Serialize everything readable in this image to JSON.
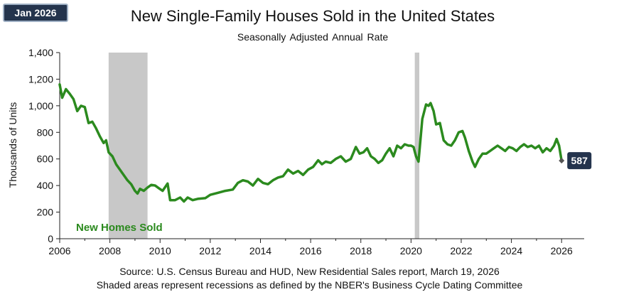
{
  "badge": "Jan 2026",
  "chart_data": {
    "type": "line",
    "title": "New Single-Family Houses Sold in the United States",
    "subtitle": "Seasonally Adjusted  Annual Rate",
    "xlabel": "",
    "ylabel": "Thousands of Units",
    "xlim": [
      2006,
      2026.9
    ],
    "ylim": [
      0,
      1400
    ],
    "x_ticks": [
      "2006",
      "2008",
      "2010",
      "2012",
      "2014",
      "2016",
      "2018",
      "2020",
      "2022",
      "2024",
      "2026"
    ],
    "y_ticks": [
      "0",
      "200",
      "400",
      "600",
      "800",
      "1,000",
      "1,200",
      "1,400"
    ],
    "grid": false,
    "series": [
      {
        "name": "New Homes Sold",
        "color": "#2b8a1e",
        "points": [
          [
            2006.0,
            1160
          ],
          [
            2006.1,
            1060
          ],
          [
            2006.25,
            1125
          ],
          [
            2006.4,
            1090
          ],
          [
            2006.55,
            1050
          ],
          [
            2006.7,
            960
          ],
          [
            2006.85,
            1000
          ],
          [
            2007.0,
            990
          ],
          [
            2007.15,
            870
          ],
          [
            2007.3,
            880
          ],
          [
            2007.45,
            830
          ],
          [
            2007.6,
            770
          ],
          [
            2007.75,
            720
          ],
          [
            2007.85,
            740
          ],
          [
            2007.95,
            650
          ],
          [
            2008.1,
            620
          ],
          [
            2008.25,
            560
          ],
          [
            2008.4,
            520
          ],
          [
            2008.55,
            480
          ],
          [
            2008.7,
            440
          ],
          [
            2008.85,
            410
          ],
          [
            2009.0,
            360
          ],
          [
            2009.1,
            340
          ],
          [
            2009.2,
            375
          ],
          [
            2009.35,
            360
          ],
          [
            2009.5,
            385
          ],
          [
            2009.65,
            405
          ],
          [
            2009.8,
            400
          ],
          [
            2009.95,
            380
          ],
          [
            2010.1,
            360
          ],
          [
            2010.3,
            415
          ],
          [
            2010.4,
            290
          ],
          [
            2010.6,
            290
          ],
          [
            2010.8,
            310
          ],
          [
            2010.95,
            280
          ],
          [
            2011.1,
            310
          ],
          [
            2011.3,
            290
          ],
          [
            2011.5,
            300
          ],
          [
            2011.8,
            305
          ],
          [
            2012.0,
            330
          ],
          [
            2012.3,
            345
          ],
          [
            2012.6,
            360
          ],
          [
            2012.9,
            370
          ],
          [
            2013.1,
            420
          ],
          [
            2013.3,
            440
          ],
          [
            2013.5,
            430
          ],
          [
            2013.7,
            400
          ],
          [
            2013.9,
            450
          ],
          [
            2014.1,
            420
          ],
          [
            2014.3,
            410
          ],
          [
            2014.5,
            440
          ],
          [
            2014.7,
            460
          ],
          [
            2014.9,
            470
          ],
          [
            2015.1,
            520
          ],
          [
            2015.3,
            490
          ],
          [
            2015.5,
            510
          ],
          [
            2015.7,
            480
          ],
          [
            2015.9,
            520
          ],
          [
            2016.1,
            540
          ],
          [
            2016.3,
            590
          ],
          [
            2016.45,
            560
          ],
          [
            2016.6,
            580
          ],
          [
            2016.8,
            570
          ],
          [
            2017.0,
            600
          ],
          [
            2017.2,
            620
          ],
          [
            2017.4,
            580
          ],
          [
            2017.6,
            600
          ],
          [
            2017.8,
            690
          ],
          [
            2017.95,
            640
          ],
          [
            2018.1,
            650
          ],
          [
            2018.25,
            680
          ],
          [
            2018.4,
            620
          ],
          [
            2018.55,
            600
          ],
          [
            2018.7,
            570
          ],
          [
            2018.85,
            590
          ],
          [
            2019.0,
            640
          ],
          [
            2019.15,
            680
          ],
          [
            2019.3,
            620
          ],
          [
            2019.45,
            700
          ],
          [
            2019.6,
            680
          ],
          [
            2019.75,
            710
          ],
          [
            2019.9,
            700
          ],
          [
            2020.0,
            700
          ],
          [
            2020.1,
            690
          ],
          [
            2020.2,
            620
          ],
          [
            2020.3,
            580
          ],
          [
            2020.45,
            900
          ],
          [
            2020.6,
            1010
          ],
          [
            2020.7,
            1000
          ],
          [
            2020.78,
            1020
          ],
          [
            2020.9,
            960
          ],
          [
            2021.0,
            860
          ],
          [
            2021.15,
            870
          ],
          [
            2021.3,
            740
          ],
          [
            2021.45,
            710
          ],
          [
            2021.6,
            700
          ],
          [
            2021.75,
            740
          ],
          [
            2021.9,
            800
          ],
          [
            2022.05,
            810
          ],
          [
            2022.15,
            760
          ],
          [
            2022.3,
            660
          ],
          [
            2022.45,
            580
          ],
          [
            2022.55,
            540
          ],
          [
            2022.7,
            600
          ],
          [
            2022.85,
            640
          ],
          [
            2023.0,
            640
          ],
          [
            2023.15,
            660
          ],
          [
            2023.3,
            680
          ],
          [
            2023.45,
            700
          ],
          [
            2023.6,
            680
          ],
          [
            2023.75,
            660
          ],
          [
            2023.9,
            690
          ],
          [
            2024.05,
            680
          ],
          [
            2024.2,
            660
          ],
          [
            2024.35,
            690
          ],
          [
            2024.5,
            710
          ],
          [
            2024.65,
            690
          ],
          [
            2024.8,
            700
          ],
          [
            2024.95,
            680
          ],
          [
            2025.1,
            700
          ],
          [
            2025.25,
            650
          ],
          [
            2025.4,
            680
          ],
          [
            2025.55,
            660
          ],
          [
            2025.7,
            700
          ],
          [
            2025.8,
            750
          ],
          [
            2025.9,
            700
          ],
          [
            2026.0,
            587
          ]
        ]
      }
    ],
    "recessions": [
      [
        2007.95,
        2009.5
      ],
      [
        2020.15,
        2020.33
      ]
    ],
    "series_label": "New Homes Sold",
    "last_point": {
      "x": 2026.0,
      "value": 587,
      "label": "587"
    }
  },
  "footer": {
    "source": "Source:  U.S. Census Bureau and HUD, New Residential Sales report, March 19, 2026",
    "note": "Shaded areas represent recessions as defined by the NBER's Business Cycle Dating Committee"
  },
  "colors": {
    "line": "#2b8a1e",
    "recession": "#c8c8c8",
    "badge_bg": "#24344d",
    "callout_bg": "#24344d"
  }
}
